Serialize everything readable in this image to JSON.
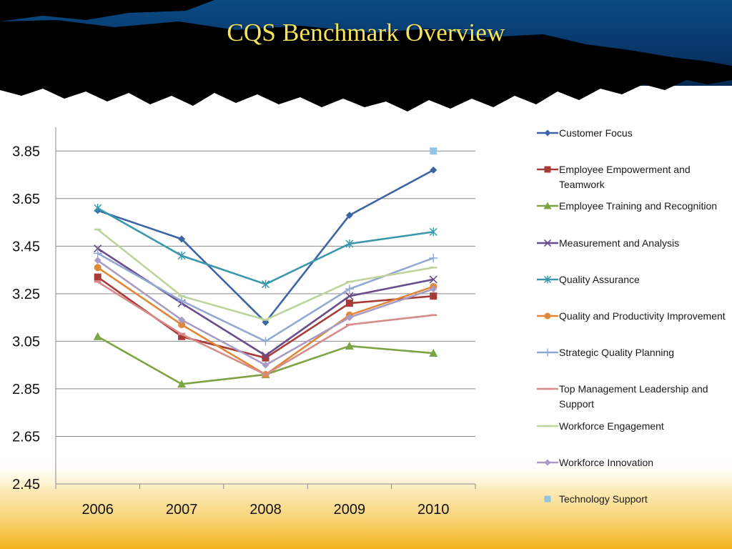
{
  "slide": {
    "title": "CQS Benchmark Overview"
  },
  "colors": {
    "banner_blue": "#0b3d73",
    "banner_black": "#000000",
    "title_yellow": "#f4e55a",
    "bottom_gold": "#f2b21a"
  },
  "chart_data": {
    "type": "line",
    "title": "",
    "xlabel": "",
    "ylabel": "",
    "categories": [
      "2006",
      "2007",
      "2008",
      "2009",
      "2010"
    ],
    "ylim": [
      2.45,
      3.95
    ],
    "yticks": [
      2.45,
      2.65,
      2.85,
      3.05,
      3.25,
      3.45,
      3.65,
      3.85
    ],
    "ytick_labels": [
      "2.45",
      "2.65",
      "2.85",
      "3.05",
      "3.25",
      "3.45",
      "3.65",
      "3.85"
    ],
    "grid": "horizontal",
    "legend_position": "right",
    "series": [
      {
        "name": "Customer Focus",
        "color": "#3d65a6",
        "marker": "diamond",
        "values": [
          3.6,
          3.48,
          3.13,
          3.58,
          3.77
        ]
      },
      {
        "name": "Employee Empowerment and Teamwork",
        "color": "#a83a37",
        "marker": "square",
        "values": [
          3.32,
          3.07,
          2.98,
          3.21,
          3.24
        ]
      },
      {
        "name": "Employee Training and Recognition",
        "color": "#7da443",
        "marker": "triangle",
        "values": [
          3.07,
          2.87,
          2.91,
          3.03,
          3.0
        ]
      },
      {
        "name": "Measurement and Analysis",
        "color": "#674d8c",
        "marker": "x",
        "values": [
          3.44,
          3.21,
          2.99,
          3.24,
          3.31
        ]
      },
      {
        "name": "Quality Assurance",
        "color": "#3b97ab",
        "marker": "asterisk",
        "values": [
          3.61,
          3.41,
          3.29,
          3.46,
          3.51
        ]
      },
      {
        "name": "Quality and Productivity Improvement",
        "color": "#e0883a",
        "marker": "circle",
        "values": [
          3.36,
          3.12,
          2.91,
          3.16,
          3.28
        ]
      },
      {
        "name": "Strategic Quality Planning",
        "color": "#93a9d3",
        "marker": "plus",
        "values": [
          3.42,
          3.22,
          3.05,
          3.27,
          3.4
        ]
      },
      {
        "name": "Top Management Leadership and Support",
        "color": "#d58c8a",
        "marker": "dash",
        "values": [
          3.3,
          3.08,
          2.91,
          3.12,
          3.16
        ]
      },
      {
        "name": "Workforce Engagement",
        "color": "#bed49a",
        "marker": "dash",
        "values": [
          3.52,
          3.24,
          3.14,
          3.3,
          3.36
        ]
      },
      {
        "name": "Workforce Innovation",
        "color": "#a89cc6",
        "marker": "diamond",
        "values": [
          3.39,
          3.14,
          2.95,
          3.15,
          3.27
        ]
      },
      {
        "name": "Technology Support",
        "color": "#93c5e0",
        "marker": "square",
        "values": [
          null,
          null,
          null,
          null,
          3.85
        ]
      }
    ]
  }
}
